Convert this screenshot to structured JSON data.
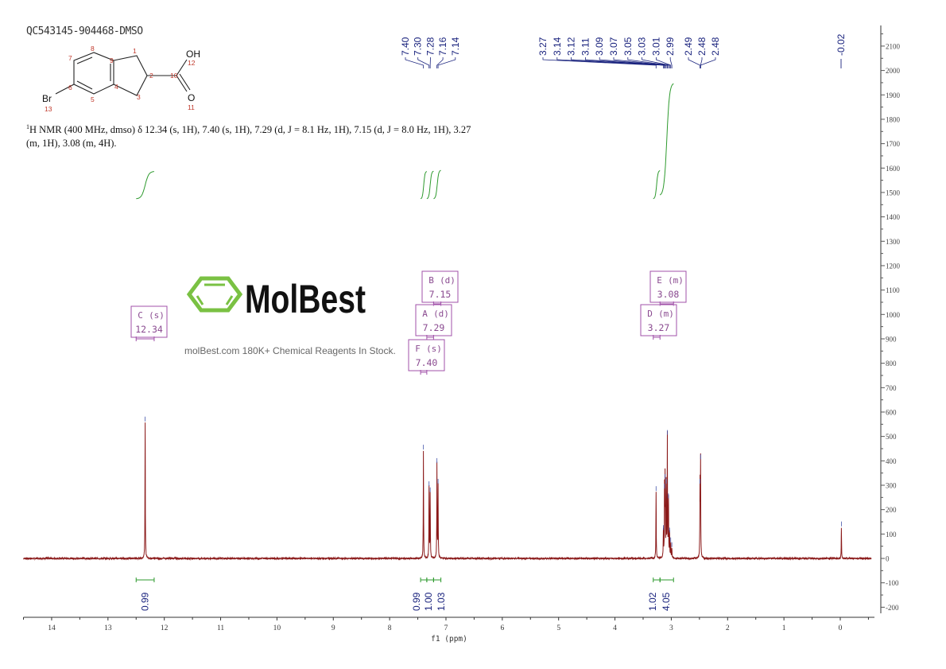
{
  "title": "QC543145-904468-DMSO",
  "nmr_description": {
    "nucleus_sup": "1",
    "text": "H NMR (400 MHz, dmso) δ 12.34 (s, 1H), 7.40 (s, 1H), 7.29 (d, J = 8.1 Hz, 1H), 7.15 (d, J = 8.0 Hz, 1H), 3.27 (m, 1H), 3.08 (m, 4H)."
  },
  "structure": {
    "atoms": {
      "oh": "OH",
      "o": "O",
      "br": "Br"
    },
    "numbers": [
      "1",
      "2",
      "3",
      "4",
      "5",
      "6",
      "7",
      "8",
      "9",
      "10",
      "11",
      "12",
      "13"
    ]
  },
  "watermark": {
    "brand": "MolBest",
    "tagline": "molBest.com 180K+ Chemical Reagents In Stock."
  },
  "colors": {
    "spectrum": "#8b1a1a",
    "integral": "#2e9a2e",
    "peak_label": "#1a237e",
    "multiplet_box": "#a050a8",
    "logo": "#7ac143"
  },
  "chart_data": {
    "type": "line",
    "title": "",
    "xlabel": "f1 (ppm)",
    "ylabel": "",
    "xlim": [
      14.5,
      -0.55
    ],
    "ylim": [
      -230,
      2200
    ],
    "x_reversed": true,
    "x_ticks": [
      "14",
      "13",
      "12",
      "11",
      "10",
      "9",
      "8",
      "7",
      "6",
      "5",
      "4",
      "3",
      "2",
      "1",
      "0"
    ],
    "y_ticks": [
      "2100",
      "2000",
      "1900",
      "1800",
      "1700",
      "1600",
      "1500",
      "1400",
      "1300",
      "1200",
      "1100",
      "1000",
      "900",
      "800",
      "700",
      "600",
      "500",
      "400",
      "300",
      "200",
      "100",
      "0",
      "-100",
      "-200"
    ],
    "y_axis_position": "right",
    "grid": false,
    "peaks": [
      {
        "ppm": 12.34,
        "intensity": 555
      },
      {
        "ppm": 7.4,
        "intensity": 440
      },
      {
        "ppm": 7.3,
        "intensity": 290
      },
      {
        "ppm": 7.28,
        "intensity": 265
      },
      {
        "ppm": 7.16,
        "intensity": 385
      },
      {
        "ppm": 7.14,
        "intensity": 300
      },
      {
        "ppm": 3.27,
        "intensity": 270
      },
      {
        "ppm": 3.14,
        "intensity": 110
      },
      {
        "ppm": 3.12,
        "intensity": 280
      },
      {
        "ppm": 3.11,
        "intensity": 320
      },
      {
        "ppm": 3.09,
        "intensity": 300
      },
      {
        "ppm": 3.07,
        "intensity": 500
      },
      {
        "ppm": 3.05,
        "intensity": 240
      },
      {
        "ppm": 3.03,
        "intensity": 100
      },
      {
        "ppm": 3.01,
        "intensity": 60
      },
      {
        "ppm": 2.99,
        "intensity": 40
      },
      {
        "ppm": 2.49,
        "intensity": 300
      },
      {
        "ppm": 2.48,
        "intensity": 400
      },
      {
        "ppm": -0.02,
        "intensity": 125
      }
    ],
    "peak_label_groups": [
      {
        "labels": [
          "7.40",
          "7.30",
          "7.28",
          "7.16",
          "7.14"
        ],
        "ppm": [
          7.4,
          7.3,
          7.28,
          7.16,
          7.14
        ]
      },
      {
        "labels": [
          "3.27",
          "3.14",
          "3.12",
          "3.11",
          "3.09",
          "3.07",
          "3.05",
          "3.03",
          "3.01",
          "2.99"
        ],
        "ppm": [
          3.27,
          3.14,
          3.12,
          3.11,
          3.09,
          3.07,
          3.05,
          3.03,
          3.01,
          2.99
        ]
      },
      {
        "labels": [
          "2.49",
          "2.48",
          "2.48"
        ],
        "ppm": [
          2.49,
          2.48,
          2.48
        ]
      },
      {
        "labels": [
          "-0.02"
        ],
        "ppm": [
          -0.02
        ]
      }
    ],
    "integrals": [
      {
        "from": 12.5,
        "to": 12.18,
        "value": "0.99"
      },
      {
        "from": 7.45,
        "to": 7.34,
        "value": "0.99"
      },
      {
        "from": 7.34,
        "to": 7.22,
        "value": "1.00"
      },
      {
        "from": 7.22,
        "to": 7.09,
        "value": "1.03"
      },
      {
        "from": 3.32,
        "to": 3.2,
        "value": "1.02"
      },
      {
        "from": 3.2,
        "to": 2.96,
        "value": "4.05"
      }
    ],
    "multiplets": [
      {
        "id": "C",
        "type": "s",
        "shift": "12.34",
        "range": [
          12.5,
          12.18
        ]
      },
      {
        "id": "B",
        "type": "d",
        "shift": "7.15",
        "range": [
          7.22,
          7.09
        ]
      },
      {
        "id": "A",
        "type": "d",
        "shift": "7.29",
        "range": [
          7.34,
          7.22
        ]
      },
      {
        "id": "F",
        "type": "s",
        "shift": "7.40",
        "range": [
          7.45,
          7.34
        ]
      },
      {
        "id": "E",
        "type": "m",
        "shift": "3.08",
        "range": [
          3.2,
          2.96
        ]
      },
      {
        "id": "D",
        "type": "m",
        "shift": "3.27",
        "range": [
          3.32,
          3.2
        ]
      }
    ]
  }
}
